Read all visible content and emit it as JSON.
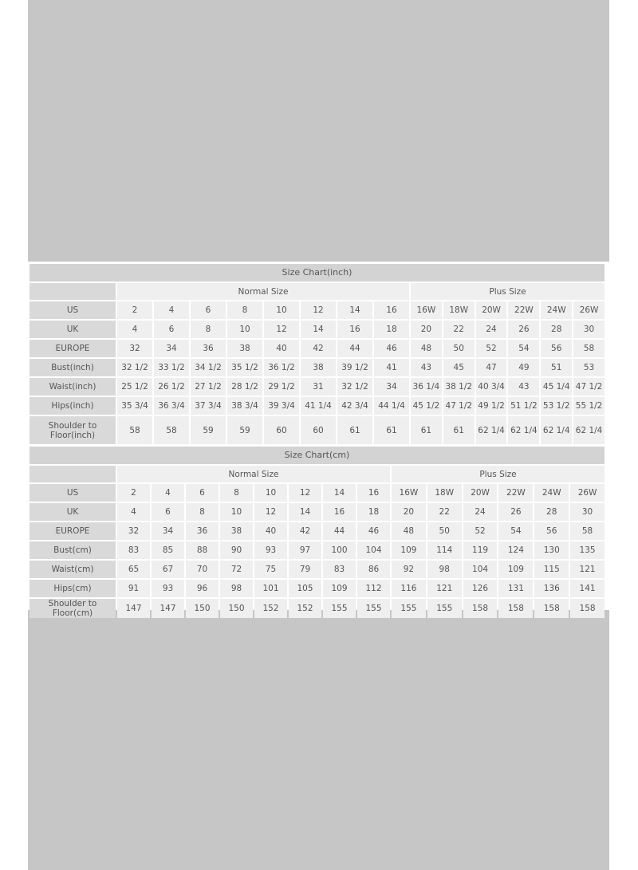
{
  "colors": {
    "background": "#c6c6c6",
    "title_bar": "#d3d3d3",
    "label_cell": "#d9d9d9",
    "data_cell": "#efefef",
    "text": "#555555"
  },
  "tables": [
    {
      "title": "Size Chart(inch)",
      "groups": [
        "Normal Size",
        "Plus Size"
      ],
      "rows": [
        {
          "label": "US",
          "values": [
            "2",
            "4",
            "6",
            "8",
            "10",
            "12",
            "14",
            "16",
            "16W",
            "18W",
            "20W",
            "22W",
            "24W",
            "26W"
          ]
        },
        {
          "label": "UK",
          "values": [
            "4",
            "6",
            "8",
            "10",
            "12",
            "14",
            "16",
            "18",
            "20",
            "22",
            "24",
            "26",
            "28",
            "30"
          ]
        },
        {
          "label": "EUROPE",
          "values": [
            "32",
            "34",
            "36",
            "38",
            "40",
            "42",
            "44",
            "46",
            "48",
            "50",
            "52",
            "54",
            "56",
            "58"
          ]
        },
        {
          "label": "Bust(inch)",
          "values": [
            "32 1/2",
            "33 1/2",
            "34 1/2",
            "35 1/2",
            "36 1/2",
            "38",
            "39 1/2",
            "41",
            "43",
            "45",
            "47",
            "49",
            "51",
            "53"
          ]
        },
        {
          "label": "Waist(inch)",
          "values": [
            "25 1/2",
            "26 1/2",
            "27 1/2",
            "28 1/2",
            "29 1/2",
            "31",
            "32 1/2",
            "34",
            "36 1/4",
            "38 1/2",
            "40 3/4",
            "43",
            "45 1/4",
            "47 1/2"
          ]
        },
        {
          "label": "Hips(inch)",
          "values": [
            "35 3/4",
            "36 3/4",
            "37 3/4",
            "38 3/4",
            "39 3/4",
            "41 1/4",
            "42 3/4",
            "44 1/4",
            "45 1/2",
            "47 1/2",
            "49 1/2",
            "51 1/2",
            "53 1/2",
            "55 1/2"
          ]
        },
        {
          "label": "Shoulder to Floor(inch)",
          "values": [
            "58",
            "58",
            "59",
            "59",
            "60",
            "60",
            "61",
            "61",
            "61",
            "61",
            "62 1/4",
            "62 1/4",
            "62 1/4",
            "62 1/4"
          ]
        }
      ]
    },
    {
      "title": "Size Chart(cm)",
      "groups": [
        "Normal Size",
        "Plus Size"
      ],
      "rows": [
        {
          "label": "US",
          "values": [
            "2",
            "4",
            "6",
            "8",
            "10",
            "12",
            "14",
            "16",
            "16W",
            "18W",
            "20W",
            "22W",
            "24W",
            "26W"
          ]
        },
        {
          "label": "UK",
          "values": [
            "4",
            "6",
            "8",
            "10",
            "12",
            "14",
            "16",
            "18",
            "20",
            "22",
            "24",
            "26",
            "28",
            "30"
          ]
        },
        {
          "label": "EUROPE",
          "values": [
            "32",
            "34",
            "36",
            "38",
            "40",
            "42",
            "44",
            "46",
            "48",
            "50",
            "52",
            "54",
            "56",
            "58"
          ]
        },
        {
          "label": "Bust(cm)",
          "values": [
            "83",
            "85",
            "88",
            "90",
            "93",
            "97",
            "100",
            "104",
            "109",
            "114",
            "119",
            "124",
            "130",
            "135"
          ]
        },
        {
          "label": "Waist(cm)",
          "values": [
            "65",
            "67",
            "70",
            "72",
            "75",
            "79",
            "83",
            "86",
            "92",
            "98",
            "104",
            "109",
            "115",
            "121"
          ]
        },
        {
          "label": "Hips(cm)",
          "values": [
            "91",
            "93",
            "96",
            "98",
            "101",
            "105",
            "109",
            "112",
            "116",
            "121",
            "126",
            "131",
            "136",
            "141"
          ]
        },
        {
          "label": "Shoulder to Floor(cm)",
          "values": [
            "147",
            "147",
            "150",
            "150",
            "152",
            "152",
            "155",
            "155",
            "155",
            "155",
            "158",
            "158",
            "158",
            "158"
          ]
        }
      ]
    }
  ]
}
